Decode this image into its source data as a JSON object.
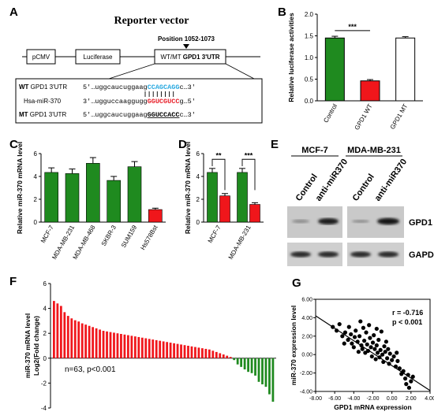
{
  "panels": {
    "A": {
      "label": "A",
      "title": "Reporter vector",
      "position_label": "Position 1052-1073",
      "boxes": [
        "pCMV",
        "Luciferase"
      ],
      "utr_box": {
        "prefix": "WT/MT ",
        "bold": "GPD1 3'UTR"
      },
      "rows": [
        {
          "tag": "WT",
          "name": "GPD1 3'UTR",
          "seq_prefix": "5'…uggcaucuggaag",
          "seq_highlight": "CCAGCAGG",
          "seq_suffix": "c…3'"
        },
        {
          "tag": "",
          "name": "Hsa-miR-370",
          "seq_prefix": "3'…ugguccaaggugg",
          "seq_highlight": "GGUCGUCC",
          "seq_suffix": "g…5'"
        },
        {
          "tag": "MT",
          "name": "GPD1 3'UTR",
          "seq_prefix": "5'…uggcaucuggaag",
          "seq_highlight": "GGUCCACC",
          "seq_suffix": "c…3'"
        }
      ],
      "colors": {
        "wt": "#29a9e0",
        "mir": "#e8202a"
      }
    },
    "B": {
      "label": "B"
    },
    "C": {
      "label": "C"
    },
    "D": {
      "label": "D"
    },
    "E": {
      "label": "E",
      "cells": [
        "MCF-7",
        "MDA-MB-231"
      ],
      "lanes": [
        "Control",
        "anti-miR370"
      ],
      "bands": [
        "GPD1",
        "GAPDH"
      ]
    },
    "F": {
      "label": "F",
      "annotation": "n=63, p<0.001"
    },
    "G": {
      "label": "G",
      "r_text": "r = -0.716",
      "p_text": "p < 0.001"
    }
  },
  "chart_data": [
    {
      "panel": "B",
      "type": "bar",
      "ylabel": "Relative luciferase activities",
      "categories": [
        "Control",
        "GPD1 WT",
        "GPD1 MT"
      ],
      "values": [
        1.45,
        0.46,
        1.45
      ],
      "errors": [
        0.04,
        0.03,
        0.03
      ],
      "colors": [
        "#1f8a1f",
        "#f0161b",
        "#ffffff"
      ],
      "ylim": [
        0.0,
        2.0
      ],
      "yticks": [
        "0.0",
        "0.5",
        "1.0",
        "1.5",
        "2.0"
      ],
      "significance": [
        {
          "from": 0,
          "to": 1,
          "label": "***"
        }
      ]
    },
    {
      "panel": "C",
      "type": "bar",
      "ylabel": "Relative miR-370 mRNA level",
      "categories": [
        "MCF-7",
        "MDA-MB-231",
        "MDA-MB-468",
        "SKBR-3",
        "SUM159",
        "Hs578Bst"
      ],
      "values": [
        4.35,
        4.25,
        5.15,
        3.65,
        4.85,
        1.1
      ],
      "errors": [
        0.4,
        0.4,
        0.5,
        0.35,
        0.45,
        0.12
      ],
      "colors": [
        "#1f8a1f",
        "#1f8a1f",
        "#1f8a1f",
        "#1f8a1f",
        "#1f8a1f",
        "#f0161b"
      ],
      "ylim": [
        0,
        6
      ],
      "yticks": [
        "0",
        "2",
        "4",
        "6"
      ]
    },
    {
      "panel": "D",
      "type": "bar",
      "ylabel": "Relative miR-370 mRNA level",
      "categories": [
        "MCF-7",
        "MDA-MB-231"
      ],
      "series": [
        {
          "values": [
            4.35,
            4.35
          ],
          "errors": [
            0.35,
            0.35
          ],
          "color": "#1f8a1f"
        },
        {
          "values": [
            2.3,
            1.55
          ],
          "errors": [
            0.2,
            0.15
          ],
          "color": "#f0161b"
        }
      ],
      "ylim": [
        0,
        6
      ],
      "yticks": [
        "0",
        "2",
        "4",
        "6"
      ],
      "significance": [
        {
          "group": 0,
          "label": "**"
        },
        {
          "group": 1,
          "label": "***"
        }
      ]
    },
    {
      "panel": "F",
      "type": "bar",
      "ylabel_lines": [
        "miR-370 mRNA level",
        "Log2(Fold change)"
      ],
      "ylim": [
        -4,
        6
      ],
      "yticks": [
        "-4",
        "-2",
        "0",
        "2",
        "4",
        "6"
      ],
      "values": [
        4.6,
        4.4,
        4.2,
        3.7,
        3.4,
        3.2,
        3.05,
        2.95,
        2.8,
        2.7,
        2.6,
        2.5,
        2.4,
        2.3,
        2.2,
        2.15,
        2.1,
        2.05,
        2.0,
        1.95,
        1.9,
        1.85,
        1.8,
        1.75,
        1.7,
        1.65,
        1.6,
        1.55,
        1.5,
        1.45,
        1.4,
        1.35,
        1.3,
        1.25,
        1.2,
        1.15,
        1.1,
        1.05,
        1.0,
        0.95,
        0.9,
        0.85,
        0.8,
        0.75,
        0.7,
        0.6,
        0.5,
        0.4,
        0.3,
        0.2,
        0.1,
        -0.15,
        -0.5,
        -0.7,
        -0.9,
        -1.1,
        -1.2,
        -1.4,
        -1.9,
        -2.1,
        -2.3,
        -2.9,
        -3.5
      ],
      "positive_color": "#f0161b",
      "negative_color": "#1f8a1f"
    },
    {
      "panel": "G",
      "type": "scatter",
      "xlabel": "GPD1 mRNA expression",
      "ylabel": "miR-370 expression level",
      "xlim": [
        -8,
        4
      ],
      "ylim": [
        -4,
        6
      ],
      "xticks": [
        "-8.00",
        "-6.00",
        "-4.00",
        "-2.00",
        "0.00",
        "2.00",
        "4.00"
      ],
      "yticks": [
        "-4.00",
        "-2.00",
        "0.00",
        "2.00",
        "4.00",
        "6.00"
      ],
      "fit": {
        "x0": -8,
        "y0": 4.2,
        "x1": 4,
        "y1": -3.9
      },
      "points": [
        [
          -6.2,
          3.0
        ],
        [
          -5.8,
          2.6
        ],
        [
          -5.5,
          3.3
        ],
        [
          -5.2,
          2.0
        ],
        [
          -4.9,
          2.4
        ],
        [
          -4.6,
          1.6
        ],
        [
          -4.5,
          3.0
        ],
        [
          -4.3,
          2.2
        ],
        [
          -4.2,
          1.2
        ],
        [
          -4.0,
          0.8
        ],
        [
          -3.9,
          1.9
        ],
        [
          -3.8,
          2.6
        ],
        [
          -3.6,
          1.4
        ],
        [
          -3.5,
          0.3
        ],
        [
          -3.4,
          2.0
        ],
        [
          -3.2,
          1.0
        ],
        [
          -3.1,
          0.6
        ],
        [
          -3.0,
          2.9
        ],
        [
          -2.9,
          1.5
        ],
        [
          -2.8,
          0.2
        ],
        [
          -2.7,
          2.4
        ],
        [
          -2.6,
          1.1
        ],
        [
          -2.5,
          0.4
        ],
        [
          -2.4,
          3.2
        ],
        [
          -2.3,
          1.8
        ],
        [
          -2.2,
          0.8
        ],
        [
          -2.1,
          -0.2
        ],
        [
          -2.0,
          1.3
        ],
        [
          -1.9,
          2.1
        ],
        [
          -1.8,
          0.6
        ],
        [
          -1.7,
          -0.5
        ],
        [
          -1.6,
          1.0
        ],
        [
          -1.5,
          0.2
        ],
        [
          -1.4,
          1.6
        ],
        [
          -1.3,
          -0.3
        ],
        [
          -1.2,
          0.5
        ],
        [
          -1.1,
          2.5
        ],
        [
          -1.0,
          0.0
        ],
        [
          -0.9,
          -0.8
        ],
        [
          -0.8,
          0.9
        ],
        [
          -0.7,
          0.3
        ],
        [
          -0.6,
          1.4
        ],
        [
          -0.5,
          -0.4
        ],
        [
          -0.4,
          0.6
        ],
        [
          -0.3,
          -1.0
        ],
        [
          -0.2,
          0.1
        ],
        [
          0.0,
          -0.6
        ],
        [
          0.2,
          -0.2
        ],
        [
          0.4,
          -1.3
        ],
        [
          0.6,
          -0.7
        ],
        [
          0.8,
          -1.5
        ],
        [
          1.0,
          -2.1
        ],
        [
          1.2,
          -1.8
        ],
        [
          1.4,
          -2.6
        ],
        [
          1.5,
          -3.2
        ],
        [
          1.7,
          -2.2
        ],
        [
          1.8,
          -3.6
        ],
        [
          2.0,
          -2.9
        ],
        [
          2.2,
          -2.4
        ],
        [
          -5.0,
          1.2
        ],
        [
          -3.3,
          3.6
        ],
        [
          -1.6,
          2.8
        ],
        [
          0.5,
          0.2
        ]
      ]
    }
  ]
}
